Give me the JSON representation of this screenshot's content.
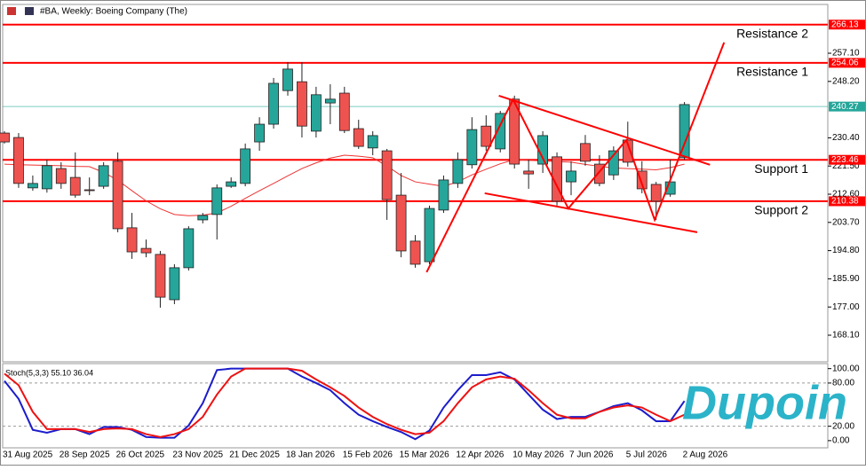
{
  "chart_data": [
    {
      "type": "candlestick",
      "title": "#BA, Weekly: Boeing Company (The)",
      "categories": [
        "31 Aug 2025",
        null,
        null,
        null,
        "28 Sep 2025",
        null,
        null,
        null,
        "26 Oct 2025",
        null,
        null,
        null,
        "23 Nov 2025",
        null,
        null,
        null,
        "21 Dec 2025",
        null,
        null,
        null,
        "18 Jan 2026",
        null,
        null,
        null,
        "15 Feb 2026",
        null,
        null,
        null,
        "15 Mar 2026",
        null,
        null,
        null,
        "12 Apr 2026",
        null,
        null,
        null,
        "10 May 2026",
        null,
        null,
        null,
        "7 Jun 2026",
        null,
        null,
        null,
        "5 Jul 2026",
        null,
        null,
        null,
        "2 Aug 2026"
      ],
      "ohlc": [
        [
          231.9,
          232.5,
          228.6,
          229.1
        ],
        [
          230.5,
          231.9,
          214.6,
          216.0
        ],
        [
          214.6,
          218.5,
          213.7,
          216.0
        ],
        [
          214.3,
          223.5,
          213.1,
          221.6
        ],
        [
          220.7,
          222.7,
          214.3,
          216.0
        ],
        [
          217.9,
          225.8,
          211.5,
          212.3
        ],
        [
          214.0,
          217.9,
          212.3,
          213.8
        ],
        [
          215.1,
          222.7,
          214.3,
          221.6
        ],
        [
          223.0,
          225.8,
          200.6,
          201.7
        ],
        [
          202.0,
          206.7,
          192.2,
          194.4
        ],
        [
          195.5,
          198.3,
          192.7,
          194.1
        ],
        [
          193.6,
          194.7,
          176.8,
          180.1
        ],
        [
          179.3,
          190.5,
          177.9,
          189.4
        ],
        [
          189.4,
          202.5,
          188.5,
          201.7
        ],
        [
          204.5,
          206.7,
          203.4,
          205.9
        ],
        [
          206.2,
          215.7,
          198.3,
          214.6
        ],
        [
          215.1,
          217.9,
          214.6,
          216.5
        ],
        [
          216.0,
          228.6,
          215.1,
          226.9
        ],
        [
          229.1,
          236.9,
          226.3,
          234.7
        ],
        [
          234.7,
          249.3,
          233.3,
          247.6
        ],
        [
          245.3,
          254.3,
          243.7,
          252.1
        ],
        [
          248.1,
          254.3,
          230.5,
          234.1
        ],
        [
          232.5,
          246.5,
          230.5,
          244.0
        ],
        [
          241.4,
          247.3,
          234.7,
          242.6
        ],
        [
          244.5,
          246.5,
          231.9,
          232.7
        ],
        [
          233.3,
          236.1,
          226.9,
          227.7
        ],
        [
          227.2,
          232.5,
          224.9,
          231.1
        ],
        [
          226.3,
          226.9,
          204.5,
          210.9
        ],
        [
          212.3,
          219.3,
          192.7,
          194.7
        ],
        [
          197.8,
          199.7,
          189.4,
          190.5
        ],
        [
          191.3,
          209.0,
          190.5,
          208.1
        ],
        [
          207.6,
          218.5,
          206.7,
          217.1
        ],
        [
          216.0,
          225.8,
          214.6,
          223.5
        ],
        [
          221.9,
          236.9,
          220.7,
          233.0
        ],
        [
          234.1,
          237.5,
          226.3,
          227.7
        ],
        [
          226.9,
          238.9,
          225.8,
          238.1
        ],
        [
          242.6,
          243.7,
          220.7,
          222.1
        ],
        [
          219.9,
          223.5,
          214.3,
          219.0
        ],
        [
          222.1,
          232.5,
          219.3,
          231.1
        ],
        [
          224.4,
          225.8,
          209.0,
          210.4
        ],
        [
          216.5,
          223.0,
          212.3,
          219.9
        ],
        [
          228.6,
          231.3,
          221.6,
          223.0
        ],
        [
          222.1,
          224.9,
          215.1,
          216.0
        ],
        [
          218.7,
          227.7,
          217.1,
          226.3
        ],
        [
          229.7,
          235.5,
          221.3,
          222.7
        ],
        [
          219.9,
          223.0,
          212.9,
          214.3
        ],
        [
          215.7,
          216.5,
          204.5,
          210.4
        ],
        [
          212.6,
          223.5,
          211.8,
          216.5
        ],
        [
          224.1,
          241.7,
          223.5,
          240.9
        ]
      ],
      "bull_color": "#26a69a",
      "bear_color": "#ef5350",
      "ma": {
        "color": "#ee3333",
        "values": [
          222.1,
          221.9,
          221.8,
          221.7,
          221.6,
          221.4,
          221.3,
          219.5,
          217.0,
          213.7,
          210.5,
          208.0,
          206.2,
          205.8,
          206.0,
          206.7,
          208.8,
          211.3,
          213.7,
          216.0,
          218.4,
          220.7,
          222.5,
          224.0,
          224.9,
          224.6,
          224.1,
          221.5,
          218.5,
          216.5,
          215.8,
          215.1,
          216.5,
          218.7,
          220.5,
          222.2,
          223.5,
          223.3,
          223.1,
          222.9,
          222.7,
          222.0,
          221.4,
          220.9,
          220.7,
          220.5,
          220.3,
          221.0,
          222.1
        ]
      },
      "ylim": [
        159.7,
        272.5
      ],
      "yticks": [
        {
          "value": 168.1,
          "label": "168.10"
        },
        {
          "value": 177,
          "label": "177.00"
        },
        {
          "value": 185.9,
          "label": "185.90"
        },
        {
          "value": 194.8,
          "label": "194.80"
        },
        {
          "value": 203.7,
          "label": "203.70"
        },
        {
          "value": 212.6,
          "label": "212.60"
        },
        {
          "value": 221.5,
          "label": "221.50"
        },
        {
          "value": 230.4,
          "label": "230.40"
        },
        {
          "value": 248.2,
          "label": "248.20"
        },
        {
          "value": 257.1,
          "label": "257.10"
        }
      ],
      "levels": [
        {
          "name": "Resistance 2",
          "value": 266.13,
          "color": "#ff0000"
        },
        {
          "name": "Resistance 1",
          "value": 254.06,
          "color": "#ff0000"
        },
        {
          "value": 240.27,
          "color": "#26a69a"
        },
        {
          "name": "Support 1",
          "value": 223.46,
          "color": "#ff0000"
        },
        {
          "name": "Support 2",
          "value": 210.38,
          "color": "#ff0000"
        }
      ],
      "trendlines": [
        {
          "color": "#ff0000",
          "points": [
            [
              29.8,
              188.0
            ],
            [
              35.9,
              242.5
            ],
            [
              39.8,
              208.1
            ],
            [
              43.9,
              229.7
            ],
            [
              45.9,
              204.5
            ],
            [
              50.8,
              260.5
            ]
          ]
        },
        {
          "color": "#ff0000",
          "points": [
            [
              34.9,
              243.7
            ],
            [
              49.8,
              221.9
            ]
          ]
        },
        {
          "color": "#ff0000",
          "points": [
            [
              33.9,
              212.9
            ],
            [
              48.9,
              200.6
            ]
          ]
        }
      ],
      "watermark": "Dupoin"
    },
    {
      "type": "line",
      "title": "Stoch(5,3,3) 55.10 36.04",
      "series": [
        {
          "color": "#1c1ccc",
          "values": [
            83,
            58,
            15,
            11,
            16,
            16,
            9,
            19,
            19,
            15,
            5,
            4,
            4,
            21,
            52,
            98,
            100,
            100,
            100,
            100,
            100,
            89,
            80,
            70,
            52,
            36,
            27,
            19,
            12,
            2,
            14,
            46,
            70,
            91,
            91,
            95,
            85,
            64,
            43,
            30,
            33,
            33,
            40,
            48,
            52,
            42,
            27,
            27,
            55.1
          ]
        },
        {
          "color": "#ee1111",
          "values": [
            93,
            77,
            40,
            16,
            16,
            16,
            12,
            16,
            17,
            16,
            9,
            5,
            9,
            16,
            33,
            64,
            89,
            100,
            100,
            100,
            100,
            97,
            85,
            74,
            62,
            46,
            33,
            23,
            15,
            9,
            11,
            27,
            52,
            74,
            85,
            89,
            86,
            70,
            52,
            36,
            31,
            31,
            40,
            46,
            49,
            46,
            36,
            27,
            36.04
          ]
        }
      ],
      "ylim": [
        -10,
        107
      ],
      "yticks": [
        {
          "value": 100,
          "label": "100.00"
        },
        {
          "value": 80,
          "label": "80.00"
        },
        {
          "value": 20,
          "label": "20.00"
        },
        {
          "value": 0,
          "label": "0.00"
        }
      ],
      "hlines": [
        80,
        20
      ]
    }
  ]
}
